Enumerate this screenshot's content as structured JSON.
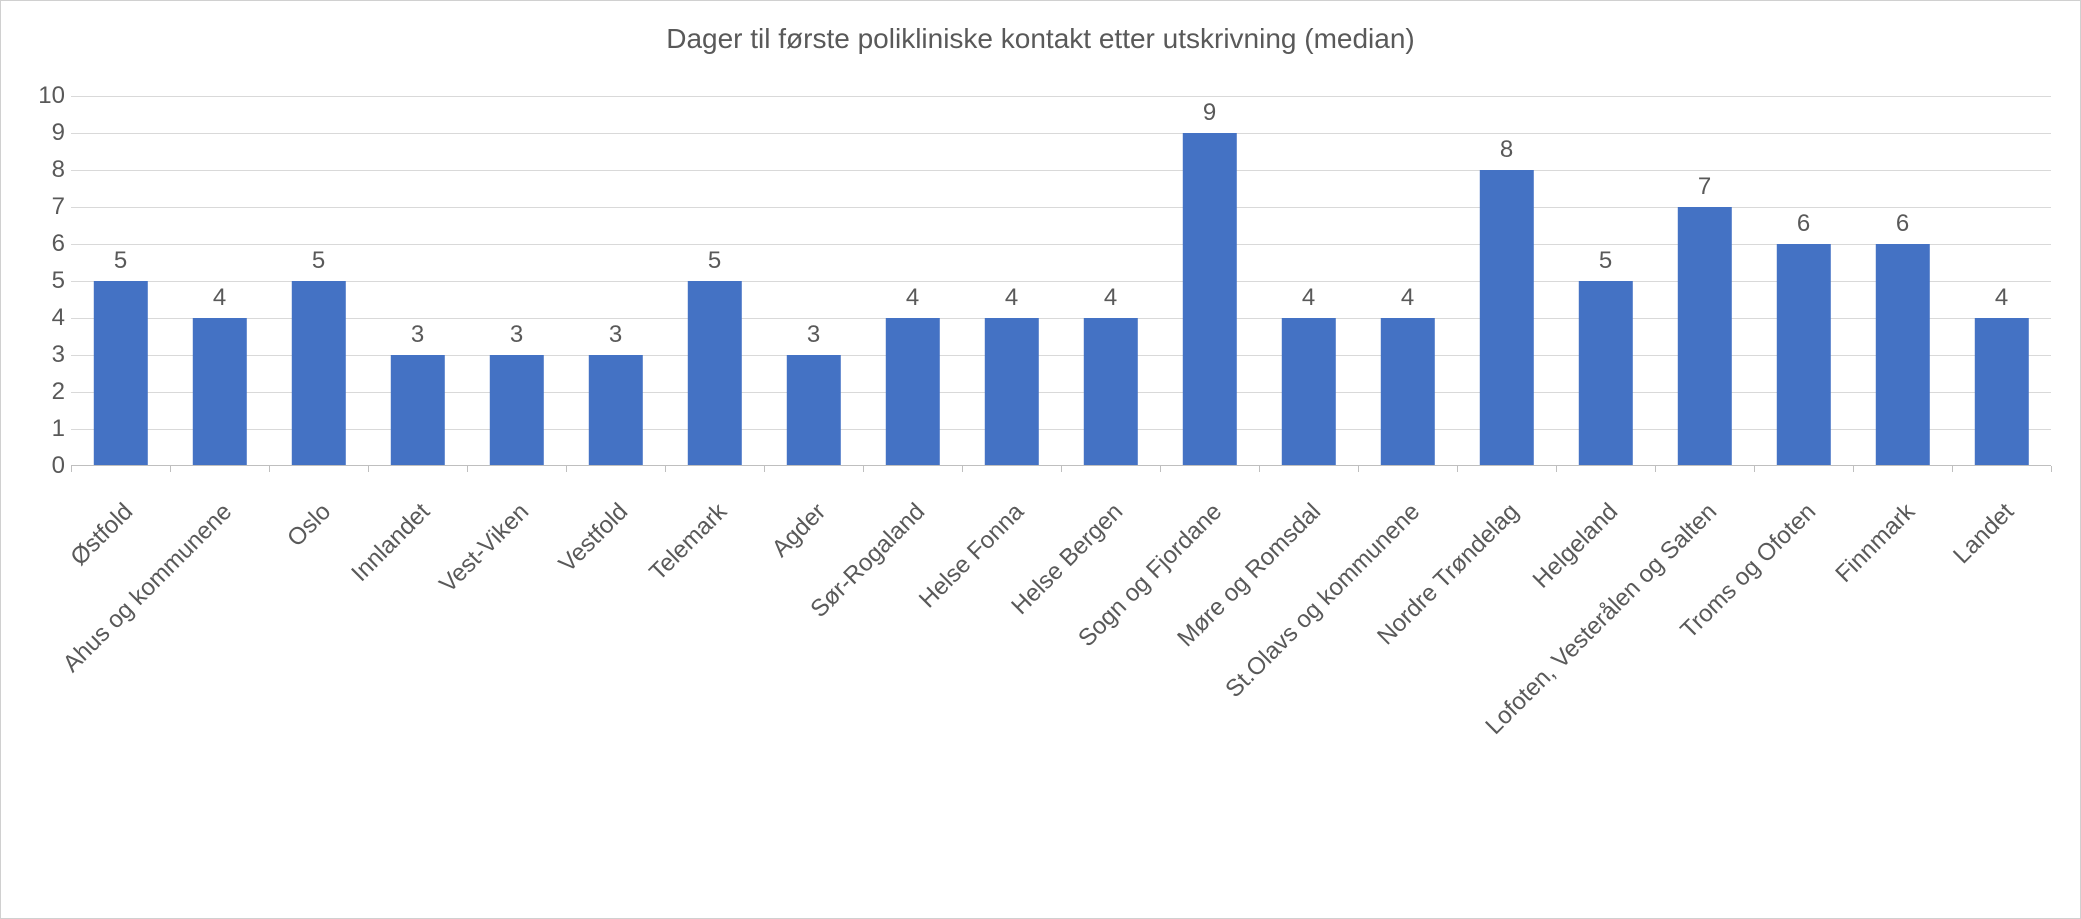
{
  "chart": {
    "type": "bar",
    "title": "Dager til første polikliniske kontakt etter utskrivning (median)",
    "title_fontsize": 28,
    "title_color": "#595959",
    "background_color": "#ffffff",
    "border_color": "#d0d0d0",
    "grid_color": "#d9d9d9",
    "axis_line_color": "#bfbfbf",
    "tick_color": "#bfbfbf",
    "bar_color": "#4472c4",
    "label_color": "#595959",
    "tick_fontsize": 24,
    "value_fontsize": 24,
    "xlabel_fontsize": 24,
    "ylim": [
      0,
      10
    ],
    "ytick_step": 1,
    "bar_width_ratio": 0.55,
    "categories": [
      "Østfold",
      "Ahus og kommunene",
      "Oslo",
      "Innlandet",
      "Vest-Viken",
      "Vestfold",
      "Telemark",
      "Agder",
      "Sør-Rogaland",
      "Helse Fonna",
      "Helse Bergen",
      "Sogn og Fjordane",
      "Møre og Romsdal",
      "St.Olavs og kommunene",
      "Nordre Trøndelag",
      "Helgeland",
      "Lofoten, Vesterålen og Salten",
      "Troms og Ofoten",
      "Finnmark",
      "Landet"
    ],
    "values": [
      5,
      4,
      5,
      3,
      3,
      3,
      5,
      3,
      4,
      4,
      4,
      9,
      4,
      4,
      8,
      5,
      7,
      6,
      6,
      4
    ]
  }
}
